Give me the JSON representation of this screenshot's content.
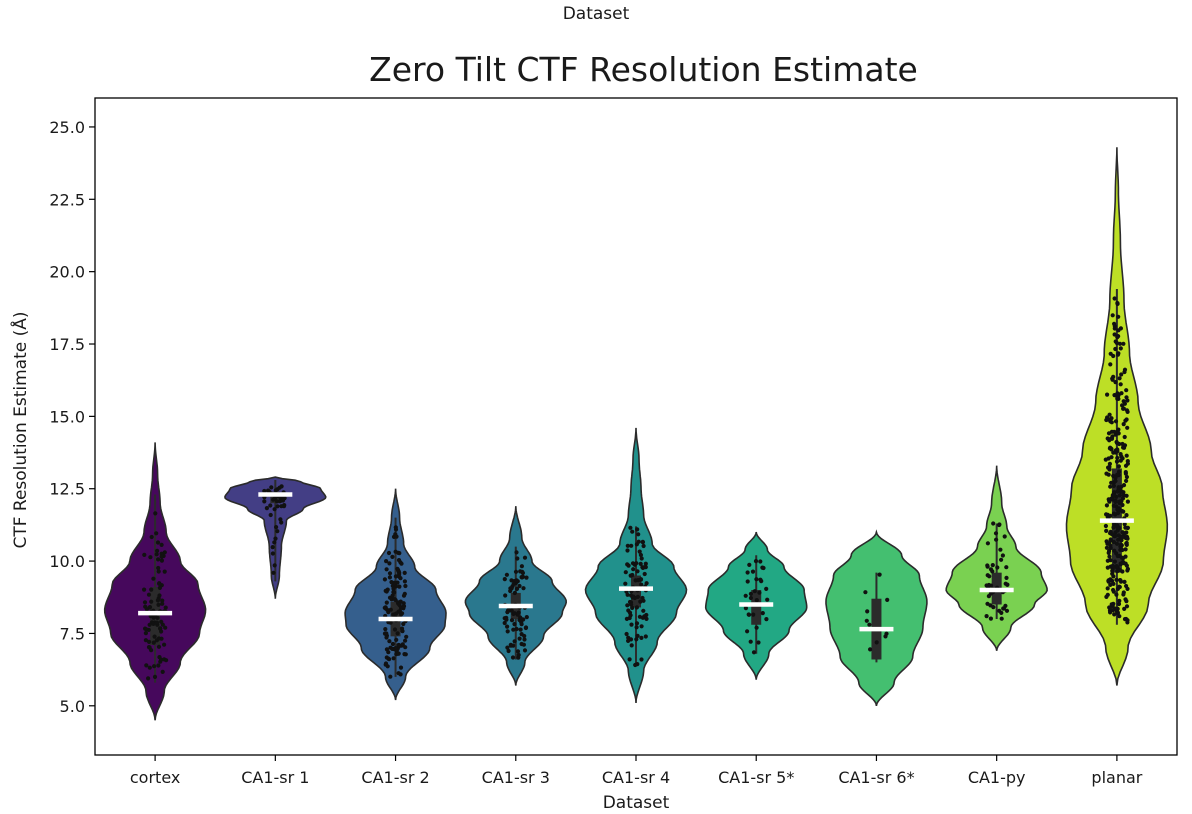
{
  "chart_data": {
    "type": "violin",
    "top_label": "Dataset",
    "title": "Zero Tilt CTF Resolution Estimate",
    "xlabel": "Dataset",
    "ylabel": "CTF Resolution Estimate (Å)",
    "ylim": [
      3.3,
      26.0
    ],
    "yticks": [
      5.0,
      7.5,
      10.0,
      12.5,
      15.0,
      17.5,
      20.0,
      22.5,
      25.0
    ],
    "ytick_labels": [
      "5.0",
      "7.5",
      "10.0",
      "12.5",
      "15.0",
      "17.5",
      "20.0",
      "22.5",
      "25.0"
    ],
    "categories": [
      "cortex",
      "CA1-sr 1",
      "CA1-sr 2",
      "CA1-sr 3",
      "CA1-sr 4",
      "CA1-sr 5*",
      "CA1-sr 6*",
      "CA1-py",
      "planar"
    ],
    "series": [
      {
        "label": "cortex",
        "color": "#46085c",
        "min": 4.5,
        "max": 14.1,
        "median": 8.2,
        "q1": 7.1,
        "q3": 9.1,
        "whisker_low": 5.8,
        "whisker_high": 12.3,
        "n_points": 90,
        "density": [
          [
            4.5,
            0.0
          ],
          [
            5.5,
            0.18
          ],
          [
            6.5,
            0.5
          ],
          [
            7.5,
            0.88
          ],
          [
            8.3,
            1.0
          ],
          [
            9.2,
            0.85
          ],
          [
            10.0,
            0.5
          ],
          [
            11.0,
            0.22
          ],
          [
            12.0,
            0.1
          ],
          [
            13.0,
            0.05
          ],
          [
            14.1,
            0.0
          ]
        ]
      },
      {
        "label": "CA1-sr 1",
        "color": "#433e85",
        "min": 8.7,
        "max": 12.9,
        "median": 12.3,
        "q1": 12.0,
        "q3": 12.4,
        "whisker_low": 9.3,
        "whisker_high": 12.8,
        "n_points": 40,
        "density": [
          [
            8.7,
            0.0
          ],
          [
            9.5,
            0.08
          ],
          [
            10.5,
            0.12
          ],
          [
            11.4,
            0.22
          ],
          [
            11.8,
            0.55
          ],
          [
            12.2,
            1.0
          ],
          [
            12.5,
            0.9
          ],
          [
            12.75,
            0.5
          ],
          [
            12.9,
            0.0
          ]
        ]
      },
      {
        "label": "CA1-sr 2",
        "color": "#355f8d",
        "min": 5.2,
        "max": 12.5,
        "median": 8.0,
        "q1": 7.4,
        "q3": 8.6,
        "whisker_low": 6.0,
        "whisker_high": 11.5,
        "n_points": 130,
        "density": [
          [
            5.2,
            0.0
          ],
          [
            6.0,
            0.2
          ],
          [
            7.0,
            0.68
          ],
          [
            7.8,
            0.98
          ],
          [
            8.2,
            1.0
          ],
          [
            9.0,
            0.8
          ],
          [
            9.8,
            0.38
          ],
          [
            10.6,
            0.16
          ],
          [
            11.5,
            0.08
          ],
          [
            12.5,
            0.0
          ]
        ]
      },
      {
        "label": "CA1-sr 3",
        "color": "#2a788e",
        "min": 5.7,
        "max": 11.9,
        "median": 8.45,
        "q1": 8.0,
        "q3": 8.9,
        "whisker_low": 6.6,
        "whisker_high": 10.5,
        "n_points": 80,
        "density": [
          [
            5.7,
            0.0
          ],
          [
            6.5,
            0.18
          ],
          [
            7.4,
            0.55
          ],
          [
            8.2,
            0.92
          ],
          [
            8.6,
            1.0
          ],
          [
            9.3,
            0.72
          ],
          [
            10.0,
            0.32
          ],
          [
            10.8,
            0.12
          ],
          [
            11.9,
            0.0
          ]
        ]
      },
      {
        "label": "CA1-sr 4",
        "color": "#21918c",
        "min": 5.1,
        "max": 14.6,
        "median": 9.05,
        "q1": 8.4,
        "q3": 9.5,
        "whisker_low": 6.4,
        "whisker_high": 11.2,
        "n_points": 90,
        "density": [
          [
            5.1,
            0.0
          ],
          [
            6.2,
            0.15
          ],
          [
            7.2,
            0.42
          ],
          [
            8.2,
            0.8
          ],
          [
            9.0,
            1.0
          ],
          [
            9.8,
            0.75
          ],
          [
            10.6,
            0.32
          ],
          [
            11.6,
            0.15
          ],
          [
            12.5,
            0.1
          ],
          [
            13.5,
            0.06
          ],
          [
            14.6,
            0.0
          ]
        ]
      },
      {
        "label": "CA1-sr 5*",
        "color": "#22a884",
        "min": 5.9,
        "max": 11.0,
        "median": 8.5,
        "q1": 7.8,
        "q3": 9.0,
        "whisker_low": 6.8,
        "whisker_high": 10.2,
        "n_points": 30,
        "density": [
          [
            5.9,
            0.0
          ],
          [
            6.8,
            0.25
          ],
          [
            7.6,
            0.65
          ],
          [
            8.4,
            1.0
          ],
          [
            9.0,
            0.95
          ],
          [
            9.8,
            0.55
          ],
          [
            10.4,
            0.22
          ],
          [
            11.0,
            0.0
          ]
        ]
      },
      {
        "label": "CA1-sr 6*",
        "color": "#44bf70",
        "min": 5.0,
        "max": 11.0,
        "median": 7.65,
        "q1": 6.6,
        "q3": 8.7,
        "whisker_low": 6.5,
        "whisker_high": 9.6,
        "n_points": 10,
        "density": [
          [
            5.0,
            0.0
          ],
          [
            5.8,
            0.35
          ],
          [
            6.7,
            0.72
          ],
          [
            7.7,
            0.92
          ],
          [
            8.6,
            1.0
          ],
          [
            9.5,
            0.85
          ],
          [
            10.2,
            0.5
          ],
          [
            11.0,
            0.0
          ]
        ]
      },
      {
        "label": "CA1-py",
        "color": "#7ad151",
        "min": 6.9,
        "max": 13.3,
        "median": 9.0,
        "q1": 8.5,
        "q3": 9.6,
        "whisker_low": 8.0,
        "whisker_high": 11.3,
        "n_points": 45,
        "density": [
          [
            6.9,
            0.0
          ],
          [
            7.7,
            0.28
          ],
          [
            8.5,
            0.75
          ],
          [
            9.0,
            1.0
          ],
          [
            9.6,
            0.88
          ],
          [
            10.5,
            0.38
          ],
          [
            11.2,
            0.2
          ],
          [
            12.0,
            0.1
          ],
          [
            13.3,
            0.0
          ]
        ]
      },
      {
        "label": "planar",
        "color": "#bddf26",
        "min": 5.7,
        "max": 24.3,
        "median": 11.4,
        "q1": 9.6,
        "q3": 13.2,
        "whisker_low": 7.8,
        "whisker_high": 19.4,
        "n_points": 320,
        "density": [
          [
            5.7,
            0.0
          ],
          [
            7.0,
            0.22
          ],
          [
            8.5,
            0.62
          ],
          [
            10.0,
            0.92
          ],
          [
            11.2,
            1.0
          ],
          [
            12.5,
            0.9
          ],
          [
            13.8,
            0.68
          ],
          [
            15.5,
            0.42
          ],
          [
            17.2,
            0.25
          ],
          [
            19.0,
            0.14
          ],
          [
            21.0,
            0.07
          ],
          [
            22.8,
            0.03
          ],
          [
            24.3,
            0.0
          ]
        ]
      }
    ]
  }
}
